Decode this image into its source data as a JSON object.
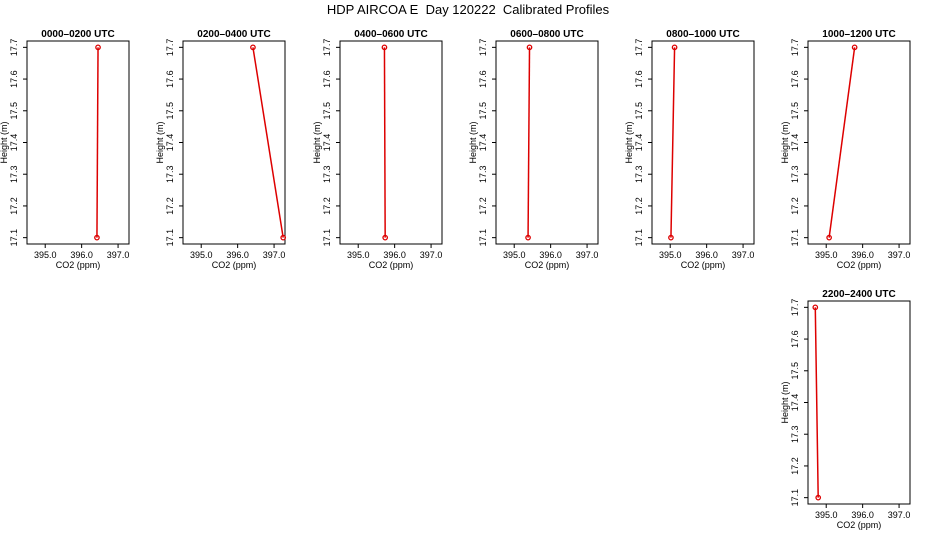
{
  "title": "HDP AIRCOA E  Day 120222  Calibrated Profiles",
  "colors": {
    "series": "#dd0000",
    "frame": "#000000"
  },
  "chart_data": [
    {
      "type": "line",
      "title": "0000–0200 UTC",
      "xlabel": "CO2 (ppm)",
      "ylabel": "Height (m)",
      "xlim": [
        394.5,
        397.3
      ],
      "ylim": [
        17.08,
        17.72
      ],
      "xticks": [
        "395.0",
        "396.0",
        "397.0"
      ],
      "yticks": [
        "17.1",
        "17.2",
        "17.3",
        "17.4",
        "17.5",
        "17.6",
        "17.7"
      ],
      "points": [
        {
          "x": 396.42,
          "y": 17.1
        },
        {
          "x": 396.45,
          "y": 17.7
        }
      ]
    },
    {
      "type": "line",
      "title": "0200–0400 UTC",
      "xlabel": "CO2 (ppm)",
      "ylabel": "Height (m)",
      "xlim": [
        394.5,
        397.3
      ],
      "ylim": [
        17.08,
        17.72
      ],
      "xticks": [
        "395.0",
        "396.0",
        "397.0"
      ],
      "yticks": [
        "17.1",
        "17.2",
        "17.3",
        "17.4",
        "17.5",
        "17.6",
        "17.7"
      ],
      "points": [
        {
          "x": 397.25,
          "y": 17.1
        },
        {
          "x": 396.42,
          "y": 17.7
        }
      ]
    },
    {
      "type": "line",
      "title": "0400–0600 UTC",
      "xlabel": "CO2 (ppm)",
      "ylabel": "Height (m)",
      "xlim": [
        394.5,
        397.3
      ],
      "ylim": [
        17.08,
        17.72
      ],
      "xticks": [
        "395.0",
        "396.0",
        "397.0"
      ],
      "yticks": [
        "17.1",
        "17.2",
        "17.3",
        "17.4",
        "17.5",
        "17.6",
        "17.7"
      ],
      "points": [
        {
          "x": 395.74,
          "y": 17.1
        },
        {
          "x": 395.72,
          "y": 17.7
        }
      ]
    },
    {
      "type": "line",
      "title": "0600–0800 UTC",
      "xlabel": "CO2 (ppm)",
      "ylabel": "Height (m)",
      "xlim": [
        394.5,
        397.3
      ],
      "ylim": [
        17.08,
        17.72
      ],
      "xticks": [
        "395.0",
        "396.0",
        "397.0"
      ],
      "yticks": [
        "17.1",
        "17.2",
        "17.3",
        "17.4",
        "17.5",
        "17.6",
        "17.7"
      ],
      "points": [
        {
          "x": 395.38,
          "y": 17.1
        },
        {
          "x": 395.42,
          "y": 17.7
        }
      ]
    },
    {
      "type": "line",
      "title": "0800–1000 UTC",
      "xlabel": "CO2 (ppm)",
      "ylabel": "Height (m)",
      "xlim": [
        394.5,
        397.3
      ],
      "ylim": [
        17.08,
        17.72
      ],
      "xticks": [
        "395.0",
        "396.0",
        "397.0"
      ],
      "yticks": [
        "17.1",
        "17.2",
        "17.3",
        "17.4",
        "17.5",
        "17.6",
        "17.7"
      ],
      "points": [
        {
          "x": 395.02,
          "y": 17.1
        },
        {
          "x": 395.12,
          "y": 17.7
        }
      ]
    },
    {
      "type": "line",
      "title": "1000–1200 UTC",
      "xlabel": "CO2 (ppm)",
      "ylabel": "Height (m)",
      "xlim": [
        394.5,
        397.3
      ],
      "ylim": [
        17.08,
        17.72
      ],
      "xticks": [
        "395.0",
        "396.0",
        "397.0"
      ],
      "yticks": [
        "17.1",
        "17.2",
        "17.3",
        "17.4",
        "17.5",
        "17.6",
        "17.7"
      ],
      "points": [
        {
          "x": 395.08,
          "y": 17.1
        },
        {
          "x": 395.78,
          "y": 17.7
        }
      ]
    },
    {
      "type": "line",
      "title": "2200–2400 UTC",
      "xlabel": "CO2 (ppm)",
      "ylabel": "Height (m)",
      "xlim": [
        394.5,
        397.3
      ],
      "ylim": [
        17.08,
        17.72
      ],
      "xticks": [
        "395.0",
        "396.0",
        "397.0"
      ],
      "yticks": [
        "17.1",
        "17.2",
        "17.3",
        "17.4",
        "17.5",
        "17.6",
        "17.7"
      ],
      "points": [
        {
          "x": 394.78,
          "y": 17.1
        },
        {
          "x": 394.7,
          "y": 17.7
        }
      ]
    }
  ]
}
